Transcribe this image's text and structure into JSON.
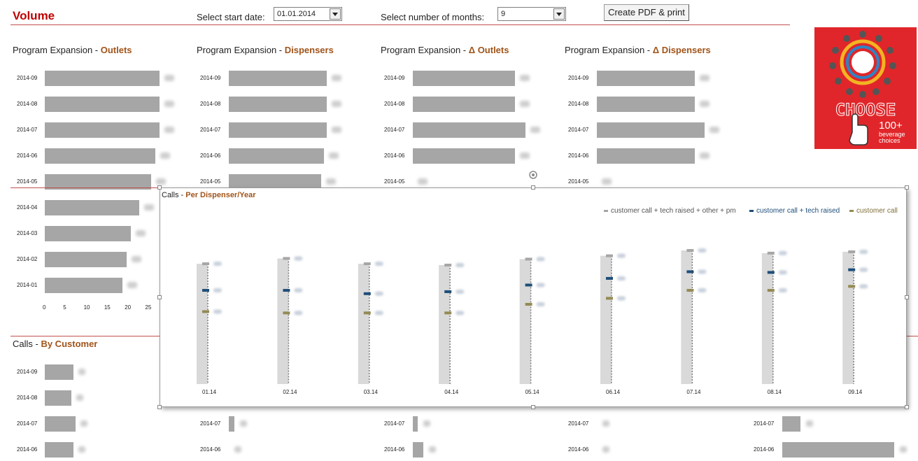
{
  "header": {
    "title": "Volume",
    "start_date_label": "Select start date:",
    "start_date_value": "01.01.2014",
    "months_label": "Select number of months:",
    "months_value": "9",
    "pdf_button": "Create PDF & print"
  },
  "logo": {
    "text_main": "CHOOSE",
    "text_sub1": "100+",
    "text_sub2": "beverage",
    "text_sub3": "choices"
  },
  "panels": [
    {
      "prefix": "Program Expansion - ",
      "highlight": "Outlets"
    },
    {
      "prefix": "Program Expansion - ",
      "highlight": "Dispensers"
    },
    {
      "prefix": "Program Expansion - ",
      "highlight": "Δ Outlets"
    },
    {
      "prefix": "Program Expansion - ",
      "highlight": "Δ Dispensers"
    }
  ],
  "months_desc": [
    "2014-09",
    "2014-08",
    "2014-07",
    "2014-06",
    "2014-05",
    "2014-04",
    "2014-03",
    "2014-02",
    "2014-01"
  ],
  "outlets_axis_ticks": [
    "0",
    "5",
    "10",
    "15",
    "20",
    "25"
  ],
  "calls_section": {
    "prefix": "Calls - ",
    "highlight": "By Customer"
  },
  "calls_months": [
    "2014-09",
    "2014-08",
    "2014-07",
    "2014-06"
  ],
  "chart_data": [
    {
      "type": "bar",
      "panel": "Program Expansion - Outlets",
      "orientation": "horizontal",
      "categories": [
        "2014-09",
        "2014-08",
        "2014-07",
        "2014-06",
        "2014-05",
        "2014-04",
        "2014-03",
        "2014-02",
        "2014-01"
      ],
      "values": [
        28,
        28,
        28,
        27,
        26,
        23,
        21,
        20,
        19
      ],
      "xlim": [
        0,
        28
      ],
      "xticks": [
        0,
        5,
        10,
        15,
        20,
        25
      ]
    },
    {
      "type": "bar",
      "panel": "Program Expansion - Dispensers",
      "orientation": "horizontal",
      "categories": [
        "2014-09",
        "2014-08",
        "2014-07",
        "2014-06",
        "2014-05"
      ],
      "values": [
        140,
        140,
        140,
        136,
        132
      ]
    },
    {
      "type": "bar",
      "panel": "Program Expansion - Δ Outlets",
      "orientation": "horizontal",
      "categories": [
        "2014-09",
        "2014-08",
        "2014-07",
        "2014-06",
        "2014-05"
      ],
      "values": [
        146,
        146,
        161,
        146,
        0
      ]
    },
    {
      "type": "bar",
      "panel": "Program Expansion - Δ Dispensers",
      "orientation": "horizontal",
      "categories": [
        "2014-09",
        "2014-08",
        "2014-07",
        "2014-06",
        "2014-05"
      ],
      "values": [
        140,
        140,
        154,
        140,
        0
      ]
    },
    {
      "type": "bar",
      "panel": "Calls - By Customer",
      "orientation": "horizontal",
      "categories": [
        "2014-09",
        "2014-08",
        "2014-07",
        "2014-06"
      ],
      "values": [
        41,
        38,
        44,
        41
      ]
    },
    {
      "type": "line",
      "title_prefix": "Calls - ",
      "title_highlight": "Per Dispenser/Year",
      "categories": [
        "01.14",
        "02.14",
        "03.14",
        "04.14",
        "05.14",
        "06.14",
        "07.14",
        "08.14",
        "09.14"
      ],
      "series": [
        {
          "name": "customer call + tech raised + other + pm",
          "color": "#a6a6a6",
          "values": [
            181,
            189,
            181,
            179,
            188,
            193,
            201,
            197,
            199
          ]
        },
        {
          "name": "customer call + tech raised",
          "color": "#1f4e79",
          "values": [
            141,
            141,
            136,
            139,
            149,
            159,
            169,
            168,
            172
          ]
        },
        {
          "name": "customer call",
          "color": "#948a54",
          "values": [
            109,
            107,
            107,
            107,
            120,
            129,
            141,
            141,
            147
          ]
        }
      ]
    }
  ]
}
